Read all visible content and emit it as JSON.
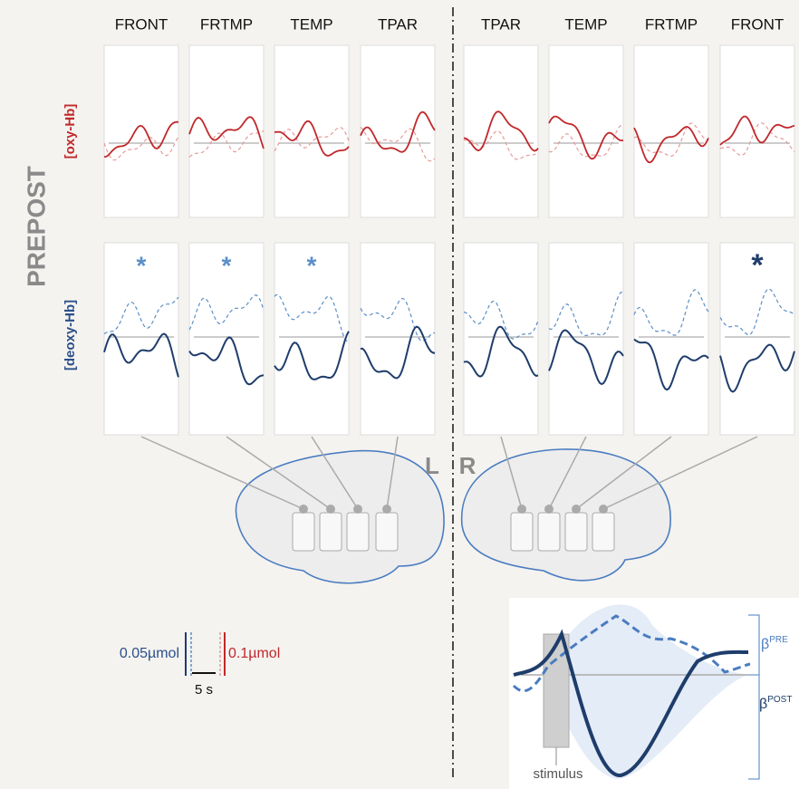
{
  "columns": [
    "FRONT",
    "FRTMP",
    "TEMP",
    "TPAR",
    "TPAR",
    "TEMP",
    "FRTMP",
    "FRONT"
  ],
  "row_label": "PREPOST",
  "rows": [
    "[oxy-Hb]",
    "[deoxy-Hb]"
  ],
  "significance_marks": [
    "*",
    "*",
    "*",
    null,
    null,
    null,
    null,
    "*"
  ],
  "hemispheres": [
    "L",
    "R"
  ],
  "scale": {
    "deoxy": "0.05µmol",
    "oxy": "0.1µmol",
    "time": "5 s"
  },
  "inset": {
    "stimulus": "stimulus",
    "beta_pre": {
      "symbol": "β",
      "sup": "PRE"
    },
    "beta_post": {
      "symbol": "β",
      "sup": "POST"
    }
  }
}
